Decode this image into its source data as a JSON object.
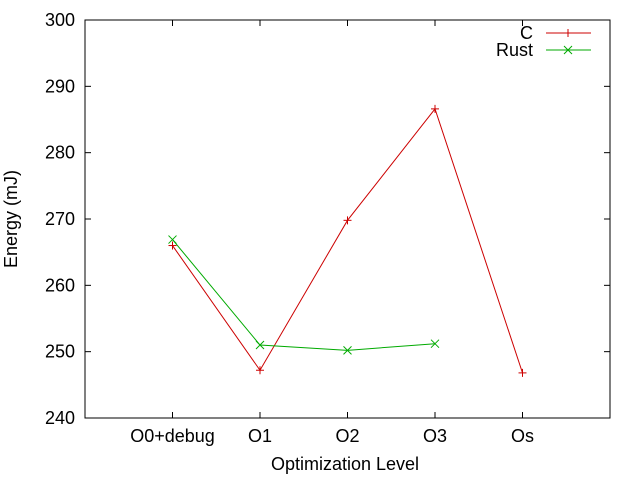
{
  "chart_data": {
    "type": "line",
    "categories": [
      "O0+debug",
      "O1",
      "O2",
      "O3",
      "Os"
    ],
    "series": [
      {
        "name": "C",
        "color": "#cc0000",
        "marker": "plus",
        "values": [
          266,
          247.2,
          269.8,
          286.6,
          246.8
        ]
      },
      {
        "name": "Rust",
        "color": "#00aa00",
        "marker": "cross",
        "values": [
          266.9,
          251,
          250.2,
          251.2,
          null
        ]
      }
    ],
    "title": "",
    "xlabel": "Optimization Level",
    "ylabel": "Energy (mJ)",
    "ylim": [
      240,
      300
    ],
    "yticks": [
      240,
      250,
      260,
      270,
      280,
      290,
      300
    ],
    "xlim": [
      -1,
      5
    ],
    "grid": false,
    "legend_position": "top-right"
  }
}
